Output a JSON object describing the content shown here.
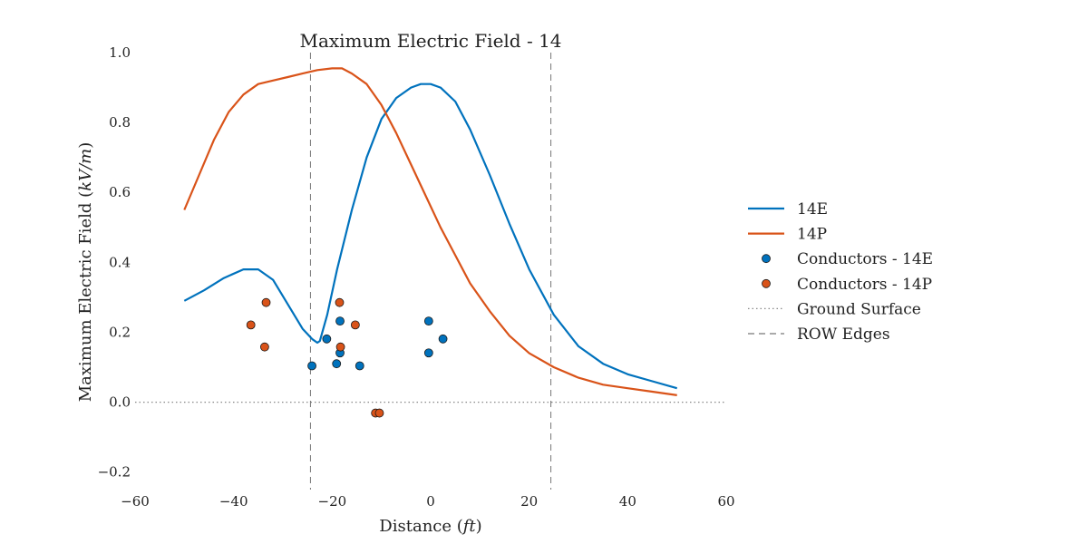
{
  "chart_data": {
    "type": "line",
    "title": "Maximum Electric Field - 14",
    "xlabel": "Distance (ft)",
    "ylabel": "Maximum Electric Field (kV/m)",
    "xlim": [
      -60,
      60
    ],
    "ylim": [
      -0.25,
      1.0
    ],
    "xticks": [
      -60,
      -40,
      -20,
      0,
      20,
      40,
      60
    ],
    "xtick_labels": [
      "−60",
      "−40",
      "−20",
      "0",
      "20",
      "40",
      "60"
    ],
    "yticks": [
      -0.2,
      0.0,
      0.2,
      0.4,
      0.6,
      0.8,
      1.0
    ],
    "ytick_labels": [
      "−0.2",
      "0.0",
      "0.2",
      "0.4",
      "0.6",
      "0.8",
      "1.0"
    ],
    "grid": false,
    "legend_position": "right",
    "series": [
      {
        "name": "14E",
        "kind": "line",
        "color": "#0072bd",
        "x": [
          -50,
          -46,
          -42,
          -38,
          -35,
          -32,
          -29,
          -26,
          -24,
          -23,
          -22.5,
          -21,
          -19,
          -16,
          -13,
          -10,
          -7,
          -4,
          -2,
          0,
          2,
          5,
          8,
          12,
          16,
          20,
          25,
          30,
          35,
          40,
          45,
          50
        ],
        "y": [
          0.29,
          0.32,
          0.355,
          0.38,
          0.38,
          0.35,
          0.28,
          0.21,
          0.18,
          0.17,
          0.175,
          0.25,
          0.38,
          0.55,
          0.7,
          0.81,
          0.87,
          0.9,
          0.91,
          0.91,
          0.9,
          0.86,
          0.78,
          0.65,
          0.51,
          0.38,
          0.25,
          0.16,
          0.11,
          0.08,
          0.06,
          0.04
        ]
      },
      {
        "name": "14P",
        "kind": "line",
        "color": "#d95319",
        "x": [
          -50,
          -47,
          -44,
          -41,
          -38,
          -35,
          -32,
          -29,
          -26,
          -23,
          -20,
          -18,
          -16,
          -13,
          -10,
          -7,
          -4,
          -1,
          2,
          5,
          8,
          12,
          16,
          20,
          25,
          30,
          35,
          40,
          45,
          50
        ],
        "y": [
          0.55,
          0.65,
          0.75,
          0.83,
          0.88,
          0.91,
          0.92,
          0.93,
          0.94,
          0.95,
          0.955,
          0.955,
          0.94,
          0.91,
          0.85,
          0.77,
          0.68,
          0.59,
          0.5,
          0.42,
          0.34,
          0.26,
          0.19,
          0.14,
          0.1,
          0.07,
          0.05,
          0.04,
          0.03,
          0.02
        ]
      },
      {
        "name": "Conductors - 14E",
        "kind": "scatter",
        "color": "#0072bd",
        "points": [
          {
            "x": -24.1,
            "y": 0.104
          },
          {
            "x": -21.1,
            "y": 0.181
          },
          {
            "x": -19.1,
            "y": 0.11
          },
          {
            "x": -18.4,
            "y": 0.141
          },
          {
            "x": -18.4,
            "y": 0.232
          },
          {
            "x": -14.4,
            "y": 0.104
          },
          {
            "x": -0.4,
            "y": 0.141
          },
          {
            "x": -0.4,
            "y": 0.232
          },
          {
            "x": 2.5,
            "y": 0.181
          }
        ]
      },
      {
        "name": "Conductors - 14P",
        "kind": "scatter",
        "color": "#d95319",
        "points": [
          {
            "x": -36.5,
            "y": 0.221
          },
          {
            "x": -33.7,
            "y": 0.158
          },
          {
            "x": -33.4,
            "y": 0.285
          },
          {
            "x": -18.5,
            "y": 0.285
          },
          {
            "x": -18.3,
            "y": 0.158
          },
          {
            "x": -15.3,
            "y": 0.221
          },
          {
            "x": -11.2,
            "y": -0.031
          },
          {
            "x": -10.4,
            "y": -0.031
          }
        ]
      },
      {
        "name": "Ground Surface",
        "kind": "hline",
        "color": "#888888",
        "style": "dotted",
        "y": 0.0
      },
      {
        "name": "ROW Edges",
        "kind": "vlines",
        "color": "#777777",
        "style": "dashed",
        "x": [
          -24.4,
          24.4
        ]
      }
    ]
  }
}
